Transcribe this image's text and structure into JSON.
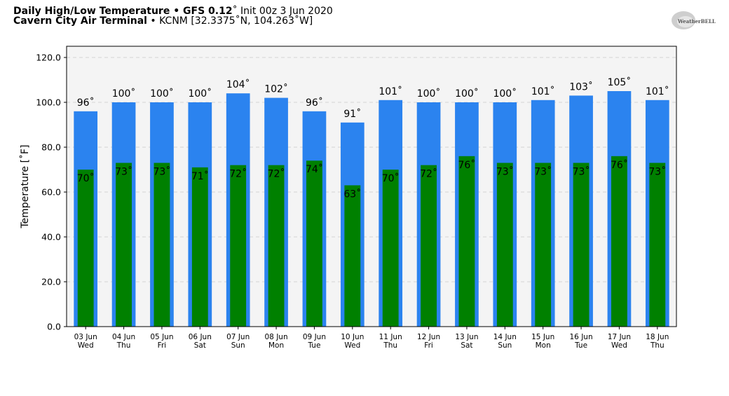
{
  "header": {
    "title_bold": "Daily High/Low Temperature • GFS 0.12",
    "title_deg": "˚",
    "title_rest": " Init 00z 3 Jun 2020",
    "location_bold": "Cavern City Air Terminal",
    "location_rest": " • KCNM [32.3375˚N, 104.263˚W]"
  },
  "logo": {
    "text": "WeatherBELL"
  },
  "colors": {
    "high_bar": "#2b83ef",
    "low_bar": "#008000",
    "plot_bg": "#f4f4f4",
    "grid": "#c8c8c8"
  },
  "chart_data": {
    "type": "bar",
    "title": "Daily High/Low Temperature • GFS 0.12˚ Init 00z 3 Jun 2020",
    "ylabel": "Temperature [˚F]",
    "ylim": [
      0,
      125
    ],
    "yticks": [
      "0.0",
      "20.0",
      "40.0",
      "60.0",
      "80.0",
      "100.0",
      "120.0"
    ],
    "ytick_values": [
      0,
      20,
      40,
      60,
      80,
      100,
      120
    ],
    "grid": true,
    "categories": [
      "03 Jun",
      "04 Jun",
      "05 Jun",
      "06 Jun",
      "07 Jun",
      "08 Jun",
      "09 Jun",
      "10 Jun",
      "11 Jun",
      "12 Jun",
      "13 Jun",
      "14 Jun",
      "15 Jun",
      "16 Jun",
      "17 Jun",
      "18 Jun"
    ],
    "weekdays": [
      "Wed",
      "Thu",
      "Fri",
      "Sat",
      "Sun",
      "Mon",
      "Tue",
      "Wed",
      "Thu",
      "Fri",
      "Sat",
      "Sun",
      "Mon",
      "Tue",
      "Wed",
      "Thu"
    ],
    "series": [
      {
        "key": "high",
        "values": [
          96,
          100,
          100,
          100,
          104,
          102,
          96,
          91,
          101,
          100,
          100,
          100,
          101,
          103,
          105,
          101
        ],
        "labels": [
          "96˚",
          "100˚",
          "100˚",
          "100˚",
          "104˚",
          "102˚",
          "96˚",
          "91˚",
          "101˚",
          "100˚",
          "100˚",
          "100˚",
          "101˚",
          "103˚",
          "105˚",
          "101˚"
        ]
      },
      {
        "key": "low",
        "values": [
          70,
          73,
          73,
          71,
          72,
          72,
          74,
          63,
          70,
          72,
          76,
          73,
          73,
          73,
          76,
          73
        ],
        "labels": [
          "70˚",
          "73˚",
          "73˚",
          "71˚",
          "72˚",
          "72˚",
          "74˚",
          "63˚",
          "70˚",
          "72˚",
          "76˚",
          "73˚",
          "73˚",
          "73˚",
          "76˚",
          "73˚"
        ]
      }
    ]
  }
}
